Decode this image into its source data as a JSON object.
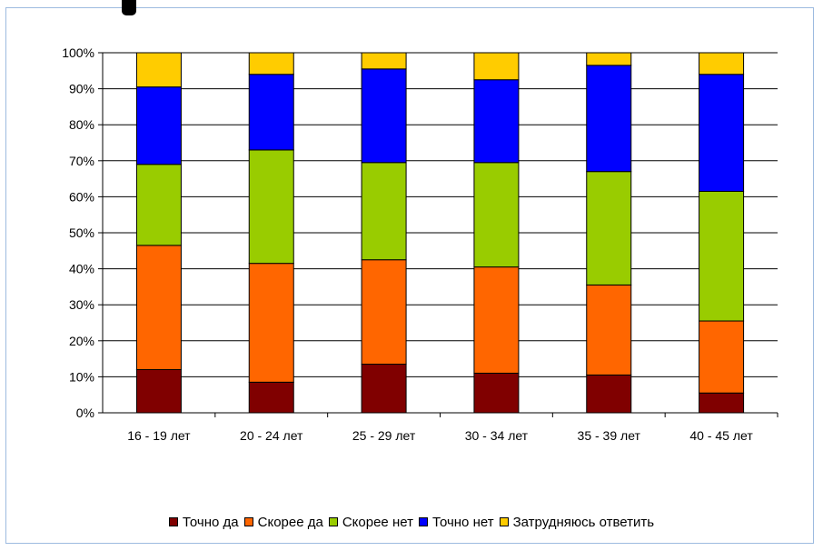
{
  "chart_data": {
    "type": "bar",
    "stacked": true,
    "normalized": true,
    "categories": [
      "16 - 19 лет",
      "20 - 24 лет",
      "25 - 29 лет",
      "30 - 34 лет",
      "35 - 39 лет",
      "40 - 45 лет"
    ],
    "series": [
      {
        "name": "Точно да",
        "color": "#800000",
        "values": [
          12,
          8.5,
          13.5,
          11,
          10.5,
          5.5
        ]
      },
      {
        "name": "Скорее да",
        "color": "#ff6600",
        "values": [
          34.5,
          33,
          29,
          29.5,
          25,
          20
        ]
      },
      {
        "name": "Скорее нет",
        "color": "#99cc00",
        "values": [
          22.5,
          31.5,
          27,
          29,
          31.5,
          36
        ]
      },
      {
        "name": "Точно нет",
        "color": "#0000ff",
        "values": [
          21.5,
          21,
          26,
          23,
          29.5,
          32.5
        ]
      },
      {
        "name": "Затрудняюсь ответить",
        "color": "#ffcc00",
        "values": [
          9.5,
          6,
          4.5,
          7.5,
          3.5,
          6
        ]
      }
    ],
    "y_ticks": [
      "0%",
      "10%",
      "20%",
      "30%",
      "40%",
      "50%",
      "60%",
      "70%",
      "80%",
      "90%",
      "100%"
    ],
    "ylim": [
      0,
      100
    ],
    "grid": true,
    "legend_position": "bottom"
  }
}
